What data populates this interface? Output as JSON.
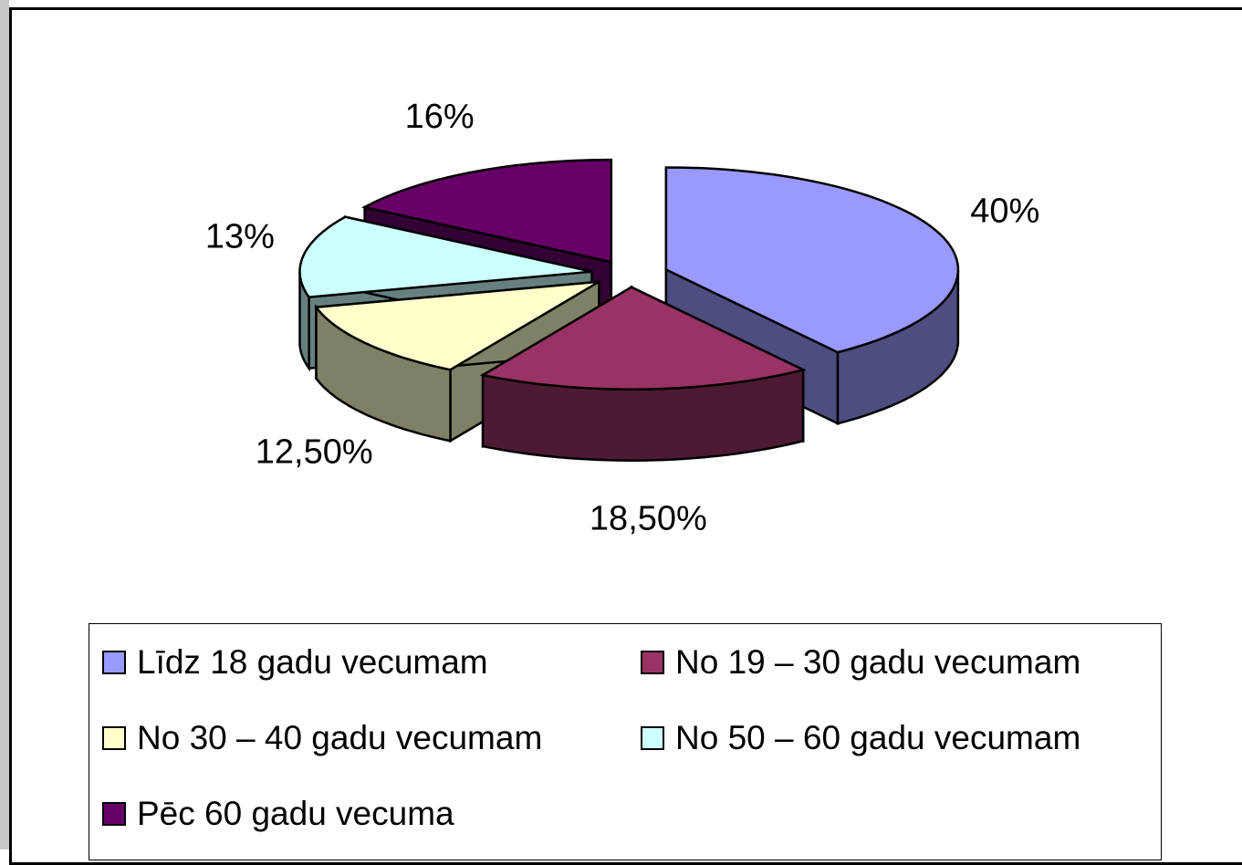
{
  "chart_data": {
    "type": "pie",
    "categories": [
      "Līdz 18 gadu vecumam",
      "No 19 – 30 gadu vecumam",
      "No 30 – 40 gadu vecumam",
      "No 50 – 60 gadu vecumam",
      "Pēc 60 gadu vecuma"
    ],
    "values": [
      40,
      18.5,
      12.5,
      13,
      16
    ],
    "value_labels": [
      "40%",
      "18,50%",
      "12,50%",
      "13%",
      "16%"
    ],
    "colors": [
      "#9999ff",
      "#993366",
      "#ffffcc",
      "#ccffff",
      "#660066"
    ],
    "legend": "bottom"
  }
}
